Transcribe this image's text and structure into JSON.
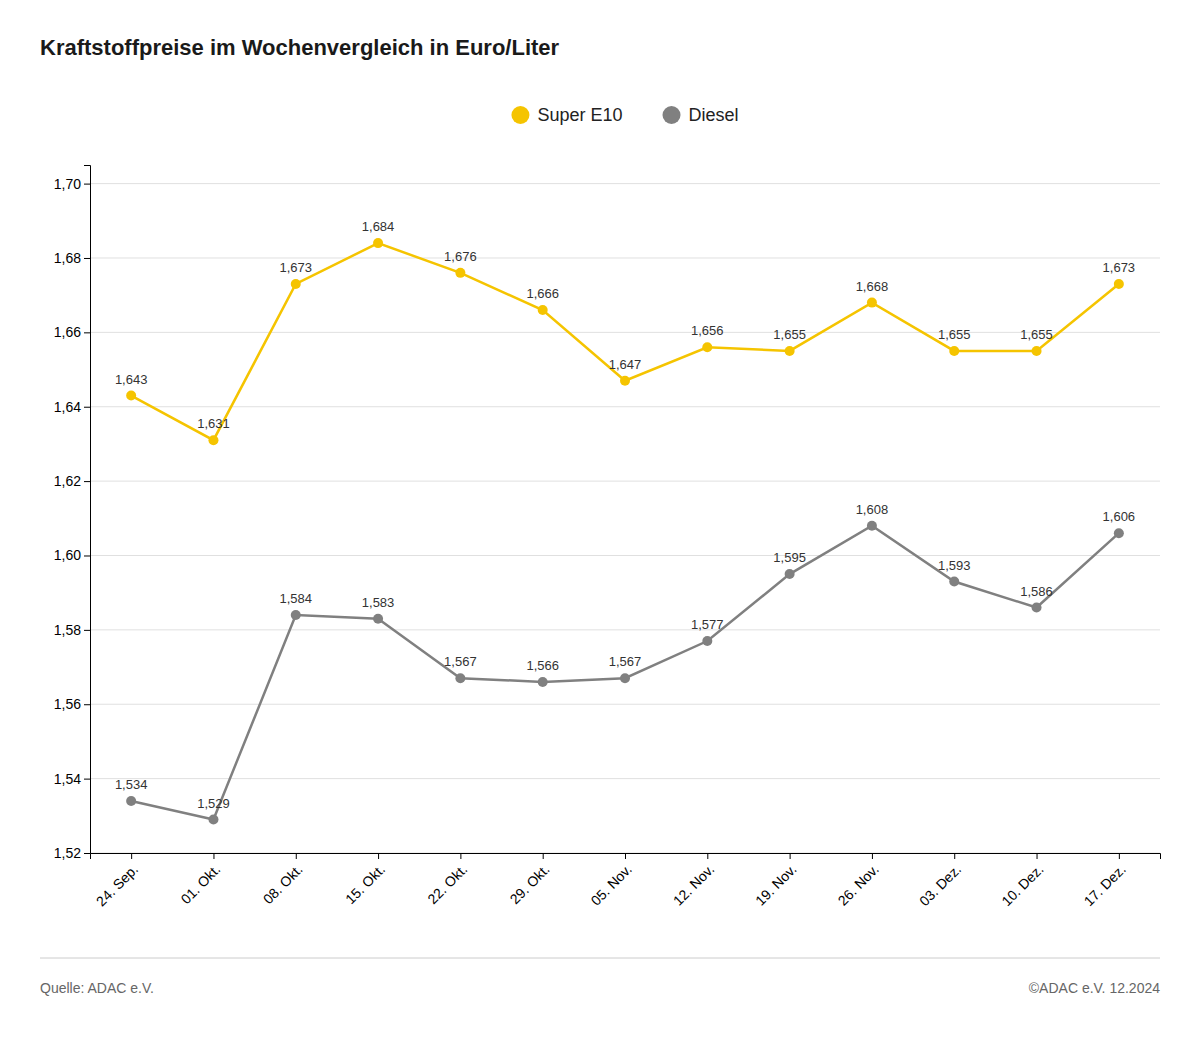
{
  "chart_data": {
    "type": "line",
    "title": "Kraftstoffpreise im Wochenvergleich in Euro/Liter",
    "categories": [
      "24. Sep.",
      "01. Okt.",
      "08. Okt.",
      "15. Okt.",
      "22. Okt.",
      "29. Okt.",
      "05. Nov.",
      "12. Nov.",
      "19. Nov.",
      "26. Nov.",
      "03. Dez.",
      "10. Dez.",
      "17. Dez."
    ],
    "series": [
      {
        "name": "Super E10",
        "color": "#F5C400",
        "marker": "circle",
        "values": [
          1.643,
          1.631,
          1.673,
          1.684,
          1.676,
          1.666,
          1.647,
          1.656,
          1.655,
          1.668,
          1.655,
          1.655,
          1.673
        ],
        "value_labels": [
          "1,643",
          "1,631",
          "1,673",
          "1,684",
          "1,676",
          "1,666",
          "1,647",
          "1,656",
          "1,655",
          "1,668",
          "1,655",
          "1,655",
          "1,673"
        ]
      },
      {
        "name": "Diesel",
        "color": "#808080",
        "marker": "circle",
        "values": [
          1.534,
          1.529,
          1.584,
          1.583,
          1.567,
          1.566,
          1.567,
          1.577,
          1.595,
          1.608,
          1.593,
          1.586,
          1.606
        ],
        "value_labels": [
          "1,534",
          "1,529",
          "1,584",
          "1,583",
          "1,567",
          "1,566",
          "1,567",
          "1,577",
          "1,595",
          "1,608",
          "1,593",
          "1,586",
          "1,606"
        ]
      }
    ],
    "ylim": [
      1.52,
      1.705
    ],
    "yticks": [
      {
        "value": 1.52,
        "label": "1,52"
      },
      {
        "value": 1.54,
        "label": "1,54"
      },
      {
        "value": 1.56,
        "label": "1,56"
      },
      {
        "value": 1.58,
        "label": "1,58"
      },
      {
        "value": 1.6,
        "label": "1,60"
      },
      {
        "value": 1.62,
        "label": "1,62"
      },
      {
        "value": 1.64,
        "label": "1,64"
      },
      {
        "value": 1.66,
        "label": "1,66"
      },
      {
        "value": 1.68,
        "label": "1,68"
      },
      {
        "value": 1.7,
        "label": "1,70"
      }
    ],
    "grid": true,
    "legend": "top",
    "data_labels": true,
    "annotations": [
      "Quelle: ADAC e.V.",
      "©ADAC e.V. 12.2024"
    ]
  }
}
